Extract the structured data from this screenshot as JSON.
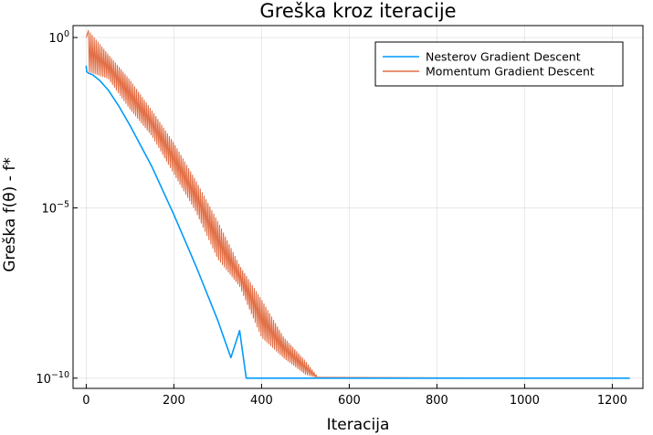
{
  "chart_data": {
    "type": "line",
    "title": "Greška kroz iteracije",
    "xlabel": "Iteracija",
    "ylabel": "Greška f(θ) - f*",
    "xlim": [
      -30,
      1270
    ],
    "ylim_log10": [
      -10.3,
      0.35
    ],
    "y_scale": "log10",
    "x_ticks": [
      0,
      200,
      400,
      600,
      800,
      1000,
      1200
    ],
    "x_tick_labels": [
      "0",
      "200",
      "400",
      "600",
      "800",
      "1000",
      "1200"
    ],
    "y_ticks": [
      {
        "base": "10",
        "exp": "0",
        "value": 1
      },
      {
        "base": "10",
        "exp": "−5",
        "value": 1e-05
      },
      {
        "base": "10",
        "exp": "−10",
        "value": 1e-10
      }
    ],
    "grid": true,
    "legend_position": "top-right",
    "series": [
      {
        "name": "Nesterov Gradient Descent",
        "color": "#009AFA",
        "points": [
          [
            0,
            0.15
          ],
          [
            1,
            0.1
          ],
          [
            5,
            0.09
          ],
          [
            15,
            0.08
          ],
          [
            30,
            0.056
          ],
          [
            50,
            0.029
          ],
          [
            75,
            0.0094
          ],
          [
            100,
            0.0026
          ],
          [
            150,
            0.00016
          ],
          [
            200,
            6.3e-06
          ],
          [
            250,
            2e-07
          ],
          [
            300,
            5e-09
          ],
          [
            330,
            4e-10
          ],
          [
            350,
            2.5e-09
          ],
          [
            365,
            1e-10
          ],
          [
            1240,
            1e-10
          ]
        ]
      },
      {
        "name": "Momentum Gradient Descent",
        "color": "#E26F46",
        "points": [
          [
            0,
            1
          ],
          [
            5,
            1.6
          ],
          [
            50,
            0.32
          ],
          [
            100,
            0.056
          ],
          [
            150,
            0.0071
          ],
          [
            200,
            0.00079
          ],
          [
            250,
            6.3e-05
          ],
          [
            300,
            4e-06
          ],
          [
            350,
            2e-07
          ],
          [
            400,
            2e-08
          ],
          [
            450,
            1.6e-09
          ],
          [
            500,
            3.2e-10
          ],
          [
            530,
            1e-10
          ],
          [
            1020,
            1e-10
          ]
        ],
        "oscillation_floor": [
          [
            5,
            0.1
          ],
          [
            50,
            0.063
          ],
          [
            100,
            0.0079
          ],
          [
            150,
            0.0013
          ],
          [
            200,
            0.0001
          ],
          [
            250,
            7.9e-06
          ],
          [
            300,
            3.2e-07
          ],
          [
            350,
            5e-08
          ],
          [
            400,
            1.6e-09
          ],
          [
            450,
            4e-10
          ],
          [
            500,
            1.3e-10
          ],
          [
            530,
            1e-10
          ]
        ]
      }
    ]
  }
}
